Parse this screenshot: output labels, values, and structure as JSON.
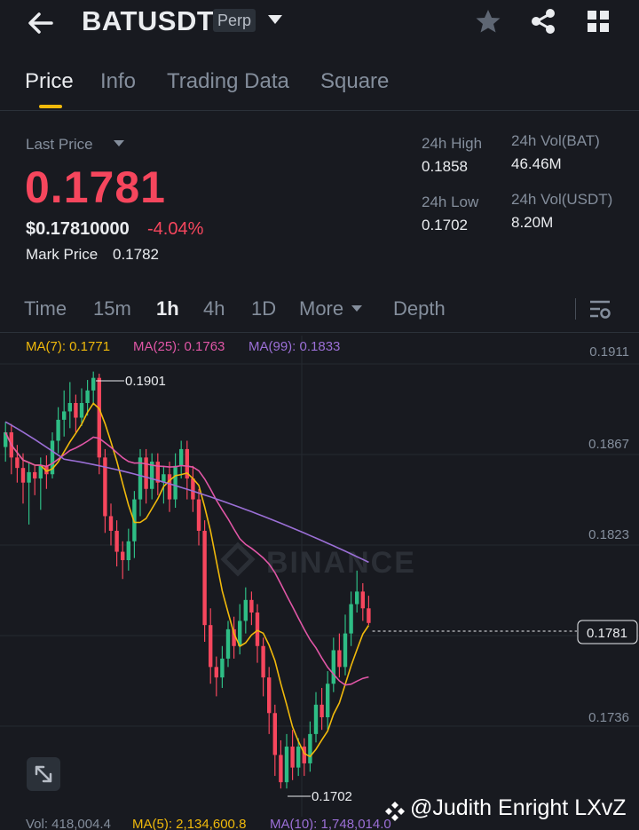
{
  "header": {
    "symbol": "BATUSDT",
    "badge": "Perp"
  },
  "tabs": [
    {
      "label": "Price",
      "active": true
    },
    {
      "label": "Info",
      "active": false
    },
    {
      "label": "Trading Data",
      "active": false
    },
    {
      "label": "Square",
      "active": false
    }
  ],
  "price": {
    "last_label": "Last Price",
    "last": "0.1781",
    "usd": "$0.17810000",
    "change": "-4.04%",
    "mark_label": "Mark Price",
    "mark": "0.1782"
  },
  "stats": {
    "high_label": "24h High",
    "high": "0.1858",
    "low_label": "24h Low",
    "low": "0.1702",
    "vol_base_label": "24h Vol(BAT)",
    "vol_base": "46.46M",
    "vol_quote_label": "24h Vol(USDT)",
    "vol_quote": "8.20M"
  },
  "intervals": {
    "time": "Time",
    "m15": "15m",
    "h1": "1h",
    "h4": "4h",
    "d1": "1D",
    "more": "More",
    "depth": "Depth",
    "active": "1h"
  },
  "ma_legend": {
    "ma7": "MA(7): 0.1771",
    "ma25": "MA(25): 0.1763",
    "ma99": "MA(99): 0.1833"
  },
  "chart": {
    "y_ticks": [
      "0.1911",
      "0.1867",
      "0.1823",
      "0.1736"
    ],
    "current_price": "0.1781",
    "high_marker": "0.1901",
    "low_marker": "0.1702",
    "watermark": "BINANCE"
  },
  "volume_legend": {
    "vol": "Vol: 418,004.4",
    "ma5": "MA(5): 2,134,600.8",
    "ma10": "MA(10): 1,748,014.0"
  },
  "watermark_user": "@Judith Enright LXvZ",
  "colors": {
    "up": "#2ebd85",
    "down": "#f6465d",
    "ma7": "#f0b90b",
    "ma25": "#e056a6",
    "ma99": "#9b6fd6",
    "accent": "#f0b90b",
    "background": "#181a20"
  },
  "icons": {
    "back": "arrow-left-icon",
    "favorite": "star-icon",
    "share": "share-icon",
    "grid": "grid-icon",
    "chart_settings": "chart-settings-icon",
    "expand": "expand-icon"
  }
}
